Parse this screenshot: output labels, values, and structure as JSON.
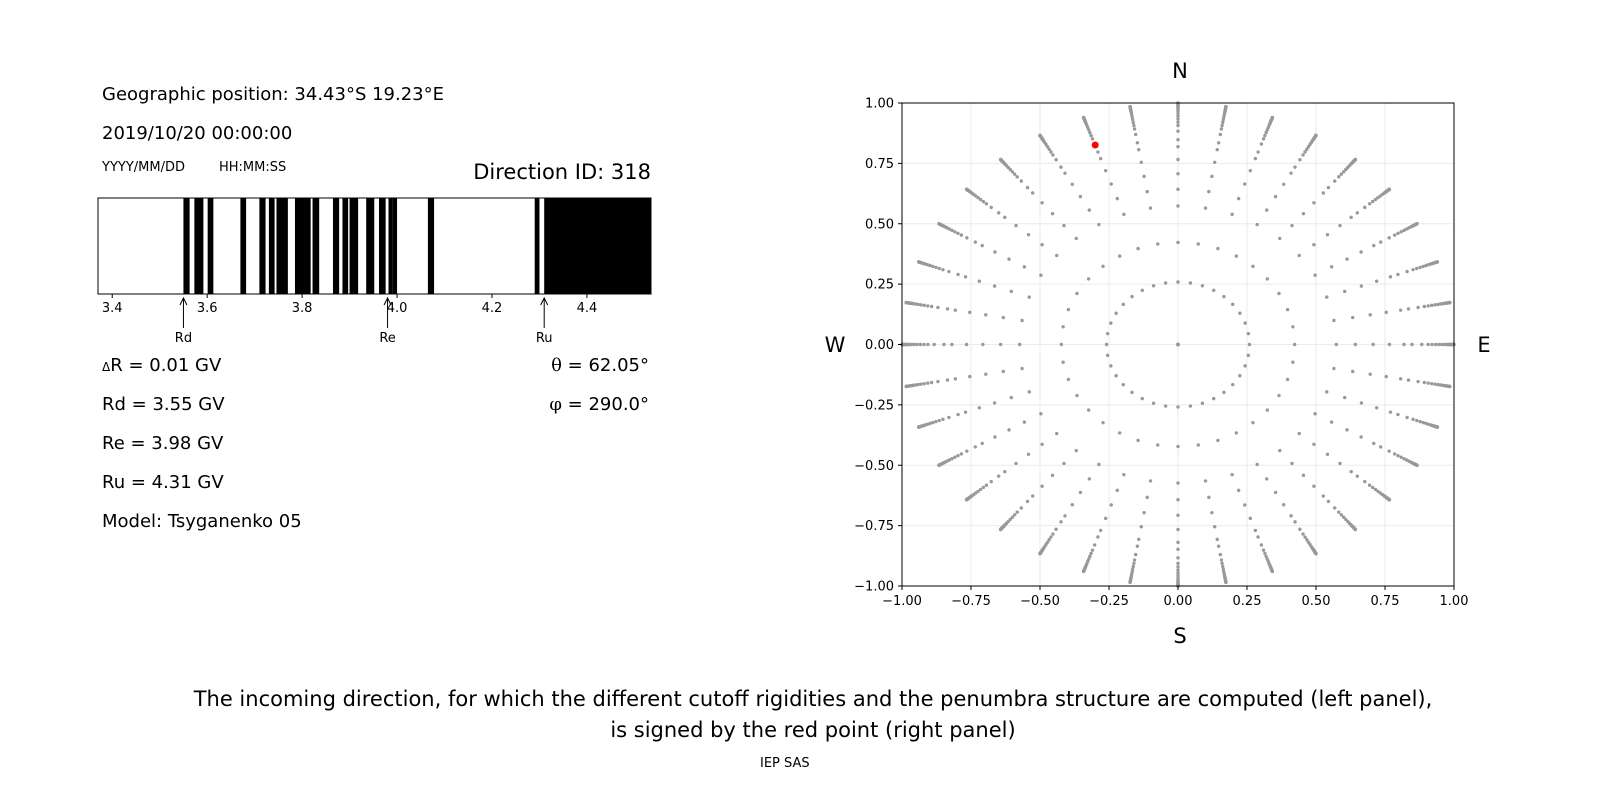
{
  "header": {
    "geo_position": "Geographic position: 34.43°S 19.23°E",
    "datetime": "2019/10/20 00:00:00",
    "date_format": "YYYY/MM/DD",
    "time_format": "HH:MM:SS",
    "direction_id": "Direction ID: 318"
  },
  "params": {
    "delta_r_symbol": "Δ",
    "delta_r": "R = 0.01 GV",
    "rd": "Rd = 3.55 GV",
    "re": "Re = 3.98 GV",
    "ru": "Ru = 4.31 GV",
    "model": "Model: Tsyganenko 05",
    "theta_symbol": "θ",
    "theta": "= 62.05°",
    "phi_symbol": "φ",
    "phi": "= 290.0°"
  },
  "compass": {
    "north": "N",
    "south": "S",
    "west": "W",
    "east": "E"
  },
  "caption": {
    "line1": "The incoming direction, for which the different cutoff rigidities and the penumbra structure are computed (left panel),",
    "line2": "is signed by the red point (right panel)"
  },
  "footer": "IEP SAS",
  "colors": {
    "selected_point": "#ff0000",
    "grid_point": "#999999",
    "forbidden_band": "#000000"
  },
  "chart_data": [
    {
      "type": "bar",
      "name": "penumbra",
      "xlim": [
        3.37,
        4.535
      ],
      "xticks": [
        3.4,
        3.6,
        3.8,
        4.0,
        4.2,
        4.4
      ],
      "tick_labels": [
        "3.4",
        "3.6",
        "3.8",
        "4.0",
        "4.2",
        "4.4"
      ],
      "markers": [
        {
          "label": "Rd",
          "value": 3.55
        },
        {
          "label": "Re",
          "value": 3.98
        },
        {
          "label": "Ru",
          "value": 4.31
        }
      ],
      "forbidden_intervals": [
        [
          3.55,
          3.563
        ],
        [
          3.573,
          3.592
        ],
        [
          3.601,
          3.613
        ],
        [
          3.67,
          3.682
        ],
        [
          3.71,
          3.723
        ],
        [
          3.73,
          3.742
        ],
        [
          3.746,
          3.77
        ],
        [
          3.785,
          3.818
        ],
        [
          3.822,
          3.836
        ],
        [
          3.865,
          3.878
        ],
        [
          3.885,
          3.897
        ],
        [
          3.9,
          3.918
        ],
        [
          3.935,
          3.952
        ],
        [
          3.962,
          3.976
        ],
        [
          3.982,
          3.99
        ],
        [
          3.99,
          4.0
        ],
        [
          4.065,
          4.078
        ],
        [
          4.29,
          4.3
        ],
        [
          4.31,
          4.535
        ]
      ]
    },
    {
      "type": "scatter",
      "name": "directions",
      "xlim": [
        -1,
        1
      ],
      "ylim": [
        -1,
        1
      ],
      "xticks": [
        -1.0,
        -0.75,
        -0.5,
        -0.25,
        0.0,
        0.25,
        0.5,
        0.75,
        1.0
      ],
      "yticks": [
        -1.0,
        -0.75,
        -0.5,
        -0.25,
        0.0,
        0.25,
        0.5,
        0.75,
        1.0
      ],
      "xtick_labels": [
        "−1.00",
        "−0.75",
        "−0.50",
        "−0.25",
        "0.00",
        "0.25",
        "0.50",
        "0.75",
        "1.00"
      ],
      "ytick_labels": [
        "−1.00",
        "−0.75",
        "−0.50",
        "−0.25",
        "0.00",
        "0.25",
        "0.50",
        "0.75",
        "1.00"
      ],
      "grid": true,
      "rings_theta_deg": [
        0,
        15,
        25,
        35,
        40,
        45,
        50,
        55,
        58,
        62.05,
        65,
        67,
        69,
        71,
        73,
        75,
        77,
        78,
        79,
        80,
        81,
        82,
        83,
        84,
        85,
        86,
        87,
        88,
        89,
        90
      ],
      "azimuths_deg": [
        0,
        10,
        20,
        30,
        40,
        50,
        60,
        70,
        80,
        90,
        100,
        110,
        120,
        130,
        140,
        150,
        160,
        170,
        180,
        190,
        200,
        210,
        220,
        230,
        240,
        250,
        260,
        270,
        280,
        290,
        300,
        310,
        320,
        330,
        340,
        350
      ],
      "selected": {
        "x": -0.3,
        "y": 0.826,
        "theta_deg": 62.05,
        "phi_deg": 290.0
      }
    }
  ]
}
